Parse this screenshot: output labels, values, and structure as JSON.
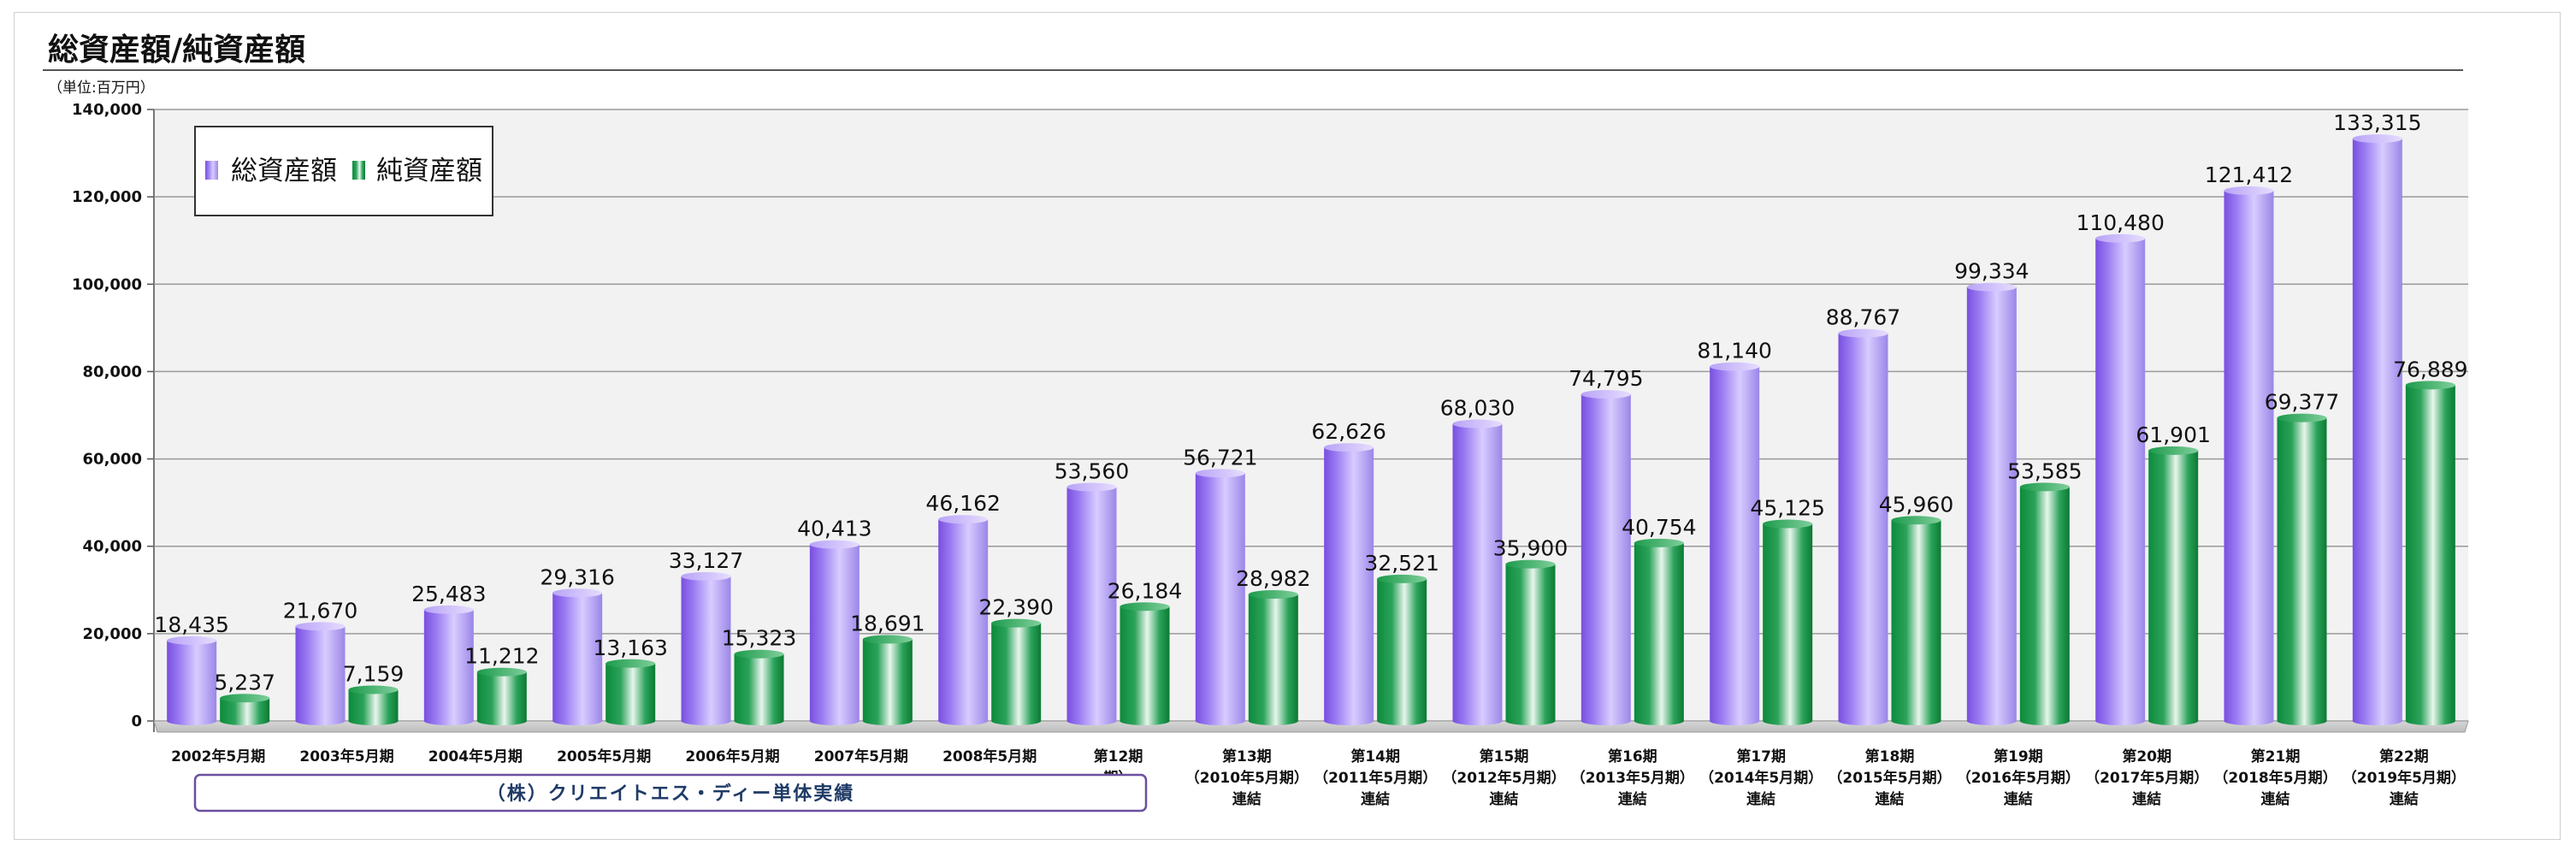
{
  "chart_data": {
    "type": "bar",
    "title": "総資産額/純資産額",
    "unit_label": "（単位:百万円）",
    "ylim": [
      0,
      140000
    ],
    "y_ticks": [
      "0",
      "20,000",
      "40,000",
      "60,000",
      "80,000",
      "100,000",
      "120,000",
      "140,000"
    ],
    "y_tick_values": [
      0,
      20000,
      40000,
      60000,
      80000,
      100000,
      120000,
      140000
    ],
    "grid": true,
    "legend_position": "top-left",
    "categories": [
      [
        "2002年5月期"
      ],
      [
        "2003年5月期"
      ],
      [
        "2004年5月期"
      ],
      [
        "2005年5月期"
      ],
      [
        "2006年5月期"
      ],
      [
        "2007年5月期"
      ],
      [
        "2008年5月期"
      ],
      [
        "第12期",
        "期）"
      ],
      [
        "第13期",
        "（2010年5月期）",
        "連結"
      ],
      [
        "第14期",
        "（2011年5月期）",
        "連結"
      ],
      [
        "第15期",
        "（2012年5月期）",
        "連結"
      ],
      [
        "第16期",
        "（2013年5月期）",
        "連結"
      ],
      [
        "第17期",
        "（2014年5月期）",
        "連結"
      ],
      [
        "第18期",
        "（2015年5月期）",
        "連結"
      ],
      [
        "第19期",
        "（2016年5月期）",
        "連結"
      ],
      [
        "第20期",
        "（2017年5月期）",
        "連結"
      ],
      [
        "第21期",
        "（2018年5月期）",
        "連結"
      ],
      [
        "第22期",
        "（2019年5月期）",
        "連結"
      ]
    ],
    "series": [
      {
        "name": "総資産額",
        "color": "#9b7ff0",
        "values": [
          18435,
          21670,
          25483,
          29316,
          33127,
          40413,
          46162,
          53560,
          56721,
          62626,
          68030,
          74795,
          81140,
          88767,
          99334,
          110480,
          121412,
          133315
        ],
        "labels": [
          "18,435",
          "21,670",
          "25,483",
          "29,316",
          "33,127",
          "40,413",
          "46,162",
          "53,560",
          "56,721",
          "62,626",
          "68,030",
          "74,795",
          "81,140",
          "88,767",
          "99,334",
          "110,480",
          "121,412",
          "133,315"
        ]
      },
      {
        "name": "純資産額",
        "color": "#1fa34f",
        "values": [
          5237,
          7159,
          11212,
          13163,
          15323,
          18691,
          22390,
          26184,
          28982,
          32521,
          35900,
          40754,
          45125,
          45960,
          53585,
          61901,
          69377,
          76889
        ],
        "labels": [
          "5,237",
          "7,159",
          "11,212",
          "13,163",
          "15,323",
          "18,691",
          "22,390",
          "26,184",
          "28,982",
          "32,521",
          "35,900",
          "40,754",
          "45,125",
          "45,960",
          "53,585",
          "61,901",
          "69,377",
          "76,889"
        ]
      }
    ],
    "group_annotation": "（株）クリエイトエス・ディー単体実績"
  }
}
